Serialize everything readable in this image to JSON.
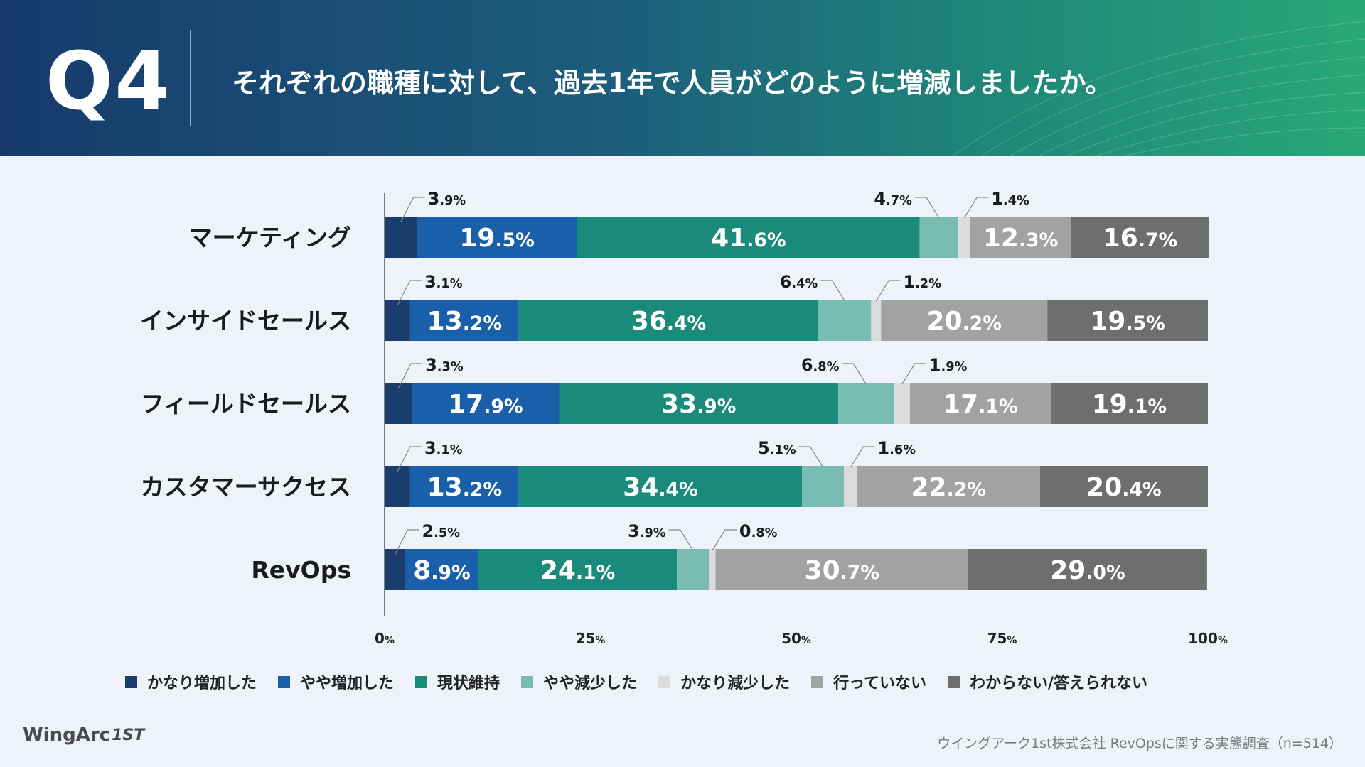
{
  "header": {
    "qnum": "Q4",
    "question": "それぞれの職種に対して、過去1年で人員がどのように増減しましたか。"
  },
  "colors": {
    "かなり増加した": "#1a3d6e",
    "やや増加した": "#1a5fa9",
    "現状維持": "#1a8a7a",
    "やや減少した": "#78bcb2",
    "かなり減少した": "#dcdcdc",
    "行っていない": "#a2a2a2",
    "わからない/答えられない": "#6e6e6e"
  },
  "chart_data": {
    "type": "bar",
    "orientation": "horizontal",
    "stacked": true,
    "title": "",
    "xlabel": "",
    "ylabel": "",
    "xlim": [
      0,
      100
    ],
    "x_ticks": [
      "0",
      "25",
      "50",
      "75",
      "100"
    ],
    "tick_unit": "%",
    "categories": [
      "マーケティング",
      "インサイドセールス",
      "フィールドセールス",
      "カスタマーサクセス",
      "RevOps"
    ],
    "series": [
      {
        "name": "かなり増加した",
        "values": [
          3.9,
          3.1,
          3.3,
          3.1,
          2.5
        ]
      },
      {
        "name": "やや増加した",
        "values": [
          19.5,
          13.2,
          17.9,
          13.2,
          8.9
        ]
      },
      {
        "name": "現状維持",
        "values": [
          41.6,
          36.4,
          33.9,
          34.4,
          24.1
        ]
      },
      {
        "name": "やや減少した",
        "values": [
          4.7,
          6.4,
          6.8,
          5.1,
          3.9
        ]
      },
      {
        "name": "かなり減少した",
        "values": [
          1.4,
          1.2,
          1.9,
          1.6,
          0.8
        ]
      },
      {
        "name": "行っていない",
        "values": [
          12.3,
          20.2,
          17.1,
          22.2,
          30.7
        ]
      },
      {
        "name": "わからない/答えられない",
        "values": [
          16.7,
          19.5,
          19.1,
          20.4,
          29.0
        ]
      }
    ],
    "legend_position": "bottom"
  },
  "legend": [
    "かなり増加した",
    "やや増加した",
    "現状維持",
    "やや減少した",
    "かなり減少した",
    "行っていない",
    "わからない/答えられない"
  ],
  "footer": {
    "logo_text": "WingArc",
    "logo_mark": "1ST",
    "source": "ウイングアーク1st株式会社 RevOpsに関する実態調査（n=514）"
  }
}
